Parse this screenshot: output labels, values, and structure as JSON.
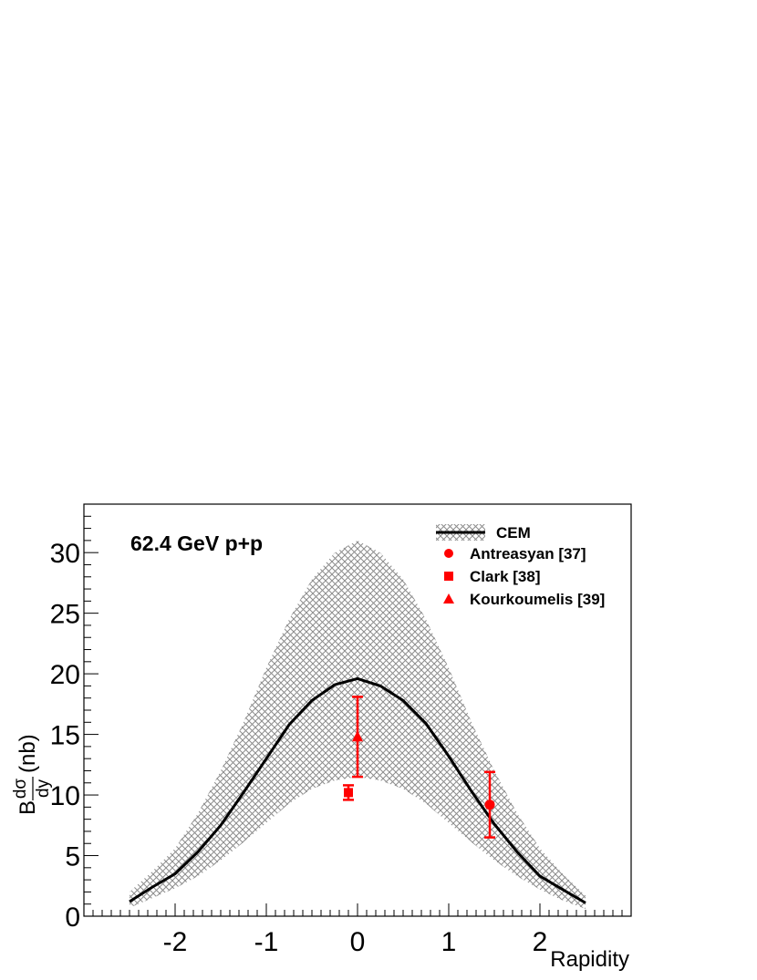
{
  "chart_data": {
    "type": "line",
    "annotation": "62.4 GeV p+p",
    "xlabel": "Rapidity",
    "ylabel": {
      "prefix": "B",
      "numerator": "dσ",
      "denominator": "dy",
      "unit": "(nb)"
    },
    "xlim": [
      -3.0,
      3.0
    ],
    "ylim": [
      0,
      34
    ],
    "x_ticks": [
      -2,
      -1,
      0,
      1,
      2
    ],
    "x_tick_labels": [
      "-2",
      "-1",
      "0",
      "1",
      "2"
    ],
    "y_ticks": [
      0,
      5,
      10,
      15,
      20,
      25,
      30
    ],
    "y_tick_labels": [
      "0",
      "5",
      "10",
      "15",
      "20",
      "25",
      "30"
    ],
    "grid": false,
    "legend": {
      "placement": "top-right",
      "entries": [
        {
          "label": "CEM",
          "symbol": "line-band"
        },
        {
          "label": "Antreasyan [37]",
          "symbol": "circle"
        },
        {
          "label": "Clark [38]",
          "symbol": "square"
        },
        {
          "label": "Kourkoumelis [39]",
          "symbol": "triangle"
        }
      ]
    },
    "series": [
      {
        "name": "CEM",
        "color": "#000000",
        "band_color": "#999999",
        "x": [
          -2.5,
          -2.25,
          -2.0,
          -1.75,
          -1.5,
          -1.25,
          -1.0,
          -0.75,
          -0.5,
          -0.25,
          0.0,
          0.25,
          0.5,
          0.75,
          1.0,
          1.25,
          1.5,
          1.75,
          2.0,
          2.25,
          2.5
        ],
        "y": [
          1.2,
          2.4,
          3.5,
          5.3,
          7.5,
          10.2,
          13.0,
          15.8,
          17.8,
          19.1,
          19.6,
          19.0,
          17.8,
          15.9,
          13.2,
          10.3,
          7.6,
          5.3,
          3.3,
          2.2,
          1.1
        ],
        "y_low": [
          0.7,
          1.5,
          2.3,
          3.3,
          4.6,
          6.1,
          7.7,
          9.3,
          10.5,
          11.2,
          11.5,
          11.2,
          10.5,
          9.3,
          7.7,
          6.1,
          4.6,
          3.3,
          2.2,
          1.3,
          0.6
        ],
        "y_high": [
          2.0,
          3.7,
          5.6,
          8.5,
          12.0,
          16.0,
          20.5,
          24.5,
          27.8,
          30.0,
          31.0,
          30.0,
          27.8,
          24.5,
          20.5,
          16.0,
          12.0,
          8.5,
          5.6,
          3.5,
          1.7
        ]
      },
      {
        "name": "Antreasyan [37]",
        "marker": "circle",
        "color": "#ff0000",
        "points": [
          {
            "x": 1.45,
            "y": 9.2,
            "err_low": 6.5,
            "err_high": 11.9
          }
        ]
      },
      {
        "name": "Clark [38]",
        "marker": "square",
        "color": "#ff0000",
        "points": [
          {
            "x": -0.1,
            "y": 10.2,
            "err_low": 9.6,
            "err_high": 10.8
          }
        ]
      },
      {
        "name": "Kourkoumelis [39]",
        "marker": "triangle",
        "color": "#ff0000",
        "points": [
          {
            "x": 0.0,
            "y": 14.8,
            "err_low": 11.5,
            "err_high": 18.1
          }
        ]
      }
    ]
  }
}
